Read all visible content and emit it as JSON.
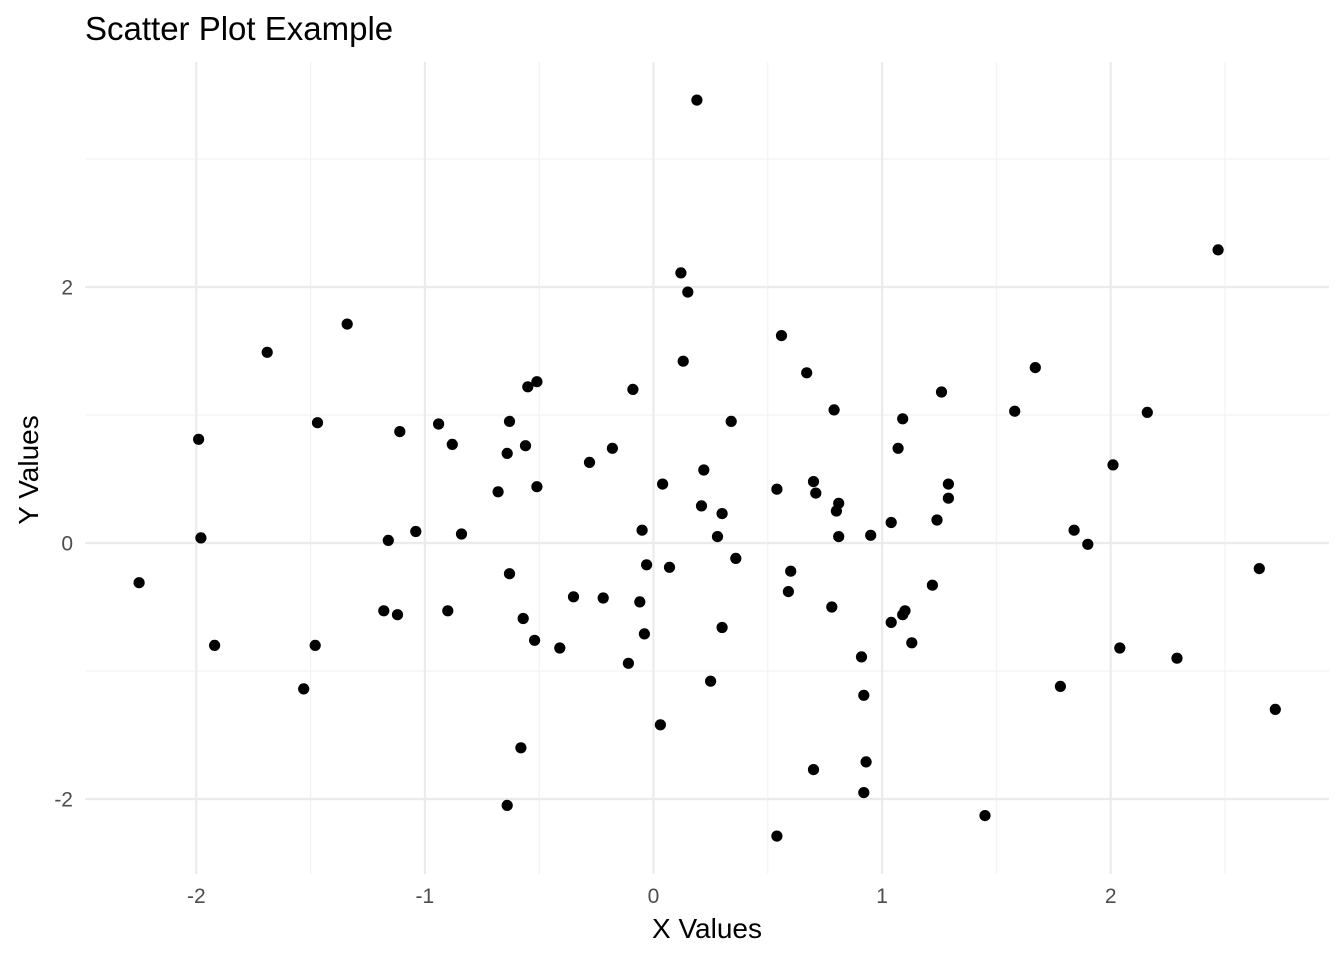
{
  "chart_data": {
    "type": "scatter",
    "title": "Scatter Plot Example",
    "xlabel": "X Values",
    "ylabel": "Y Values",
    "x_ticks": [
      -2,
      -1,
      0,
      1,
      2
    ],
    "y_ticks": [
      -2,
      0,
      2
    ],
    "x_tick_labels": [
      "-2",
      "-1",
      "0",
      "1",
      "2"
    ],
    "y_tick_labels": [
      "-2",
      "0",
      "2"
    ],
    "xlim": [
      -2.5,
      2.95
    ],
    "ylim": [
      -2.55,
      3.75
    ],
    "grid": true,
    "legend": "none",
    "point_color": "#000000",
    "series": [
      {
        "points": [
          [
            0.19,
            3.46
          ],
          [
            2.47,
            2.29
          ],
          [
            0.12,
            2.11
          ],
          [
            0.15,
            1.96
          ],
          [
            -1.34,
            1.71
          ],
          [
            0.56,
            1.62
          ],
          [
            -1.69,
            1.49
          ],
          [
            0.13,
            1.42
          ],
          [
            1.67,
            1.37
          ],
          [
            0.67,
            1.33
          ],
          [
            -0.51,
            1.26
          ],
          [
            -0.55,
            1.22
          ],
          [
            -0.09,
            1.2
          ],
          [
            1.26,
            1.18
          ],
          [
            0.79,
            1.04
          ],
          [
            1.58,
            1.03
          ],
          [
            2.16,
            1.02
          ],
          [
            1.09,
            0.97
          ],
          [
            -0.63,
            0.95
          ],
          [
            -1.47,
            0.94
          ],
          [
            0.34,
            0.95
          ],
          [
            -0.94,
            0.93
          ],
          [
            -1.11,
            0.87
          ],
          [
            -1.99,
            0.81
          ],
          [
            -0.88,
            0.77
          ],
          [
            -0.56,
            0.76
          ],
          [
            -0.18,
            0.74
          ],
          [
            1.07,
            0.74
          ],
          [
            -0.64,
            0.7
          ],
          [
            -0.28,
            0.63
          ],
          [
            2.01,
            0.61
          ],
          [
            0.22,
            0.57
          ],
          [
            0.7,
            0.48
          ],
          [
            1.29,
            0.46
          ],
          [
            0.04,
            0.46
          ],
          [
            -0.51,
            0.44
          ],
          [
            0.54,
            0.42
          ],
          [
            -0.68,
            0.4
          ],
          [
            0.71,
            0.39
          ],
          [
            1.29,
            0.35
          ],
          [
            0.81,
            0.31
          ],
          [
            0.21,
            0.29
          ],
          [
            0.8,
            0.25
          ],
          [
            0.3,
            0.23
          ],
          [
            1.24,
            0.18
          ],
          [
            1.04,
            0.16
          ],
          [
            -0.05,
            0.1
          ],
          [
            1.84,
            0.1
          ],
          [
            -1.04,
            0.09
          ],
          [
            -0.84,
            0.07
          ],
          [
            0.95,
            0.06
          ],
          [
            0.81,
            0.05
          ],
          [
            0.28,
            0.05
          ],
          [
            -1.98,
            0.04
          ],
          [
            -1.16,
            0.02
          ],
          [
            1.9,
            -0.01
          ],
          [
            0.36,
            -0.12
          ],
          [
            -0.03,
            -0.17
          ],
          [
            0.07,
            -0.19
          ],
          [
            2.65,
            -0.2
          ],
          [
            0.6,
            -0.22
          ],
          [
            -0.63,
            -0.24
          ],
          [
            -2.25,
            -0.31
          ],
          [
            1.22,
            -0.33
          ],
          [
            0.59,
            -0.38
          ],
          [
            -0.35,
            -0.42
          ],
          [
            -0.22,
            -0.43
          ],
          [
            -0.06,
            -0.46
          ],
          [
            0.78,
            -0.5
          ],
          [
            1.1,
            -0.53
          ],
          [
            -0.9,
            -0.53
          ],
          [
            -1.18,
            -0.53
          ],
          [
            1.09,
            -0.56
          ],
          [
            -1.12,
            -0.56
          ],
          [
            -0.57,
            -0.59
          ],
          [
            1.04,
            -0.62
          ],
          [
            0.3,
            -0.66
          ],
          [
            -0.04,
            -0.71
          ],
          [
            -0.52,
            -0.76
          ],
          [
            1.13,
            -0.78
          ],
          [
            -1.92,
            -0.8
          ],
          [
            -1.48,
            -0.8
          ],
          [
            -0.41,
            -0.82
          ],
          [
            2.04,
            -0.82
          ],
          [
            0.91,
            -0.89
          ],
          [
            2.29,
            -0.9
          ],
          [
            -0.11,
            -0.94
          ],
          [
            0.25,
            -1.08
          ],
          [
            1.78,
            -1.12
          ],
          [
            -1.53,
            -1.14
          ],
          [
            0.92,
            -1.19
          ],
          [
            2.72,
            -1.3
          ],
          [
            0.03,
            -1.42
          ],
          [
            -0.58,
            -1.6
          ],
          [
            0.93,
            -1.71
          ],
          [
            0.7,
            -1.77
          ],
          [
            0.92,
            -1.95
          ],
          [
            -0.64,
            -2.05
          ],
          [
            1.45,
            -2.13
          ],
          [
            0.54,
            -2.29
          ]
        ]
      }
    ]
  }
}
